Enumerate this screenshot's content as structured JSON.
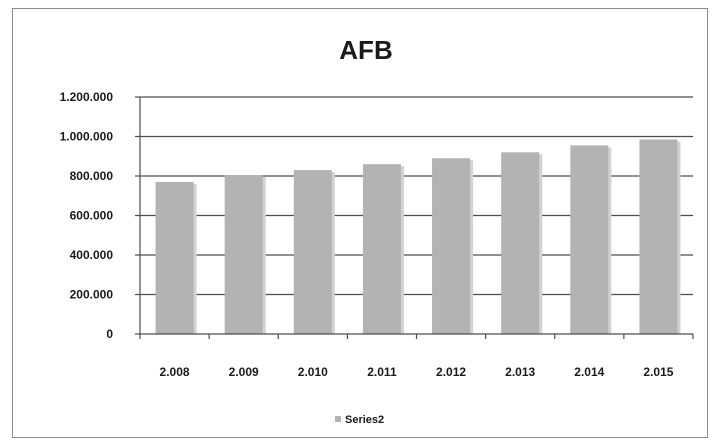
{
  "chart_data": {
    "type": "bar",
    "title": "AFB",
    "xlabel": "",
    "ylabel": "",
    "categories": [
      "2.008",
      "2.009",
      "2.010",
      "2.011",
      "2.012",
      "2.013",
      "2.014",
      "2.015"
    ],
    "series": [
      {
        "name": "Series2",
        "values": [
          770000,
          805000,
          830000,
          860000,
          890000,
          920000,
          955000,
          985000
        ]
      }
    ],
    "yticks": [
      {
        "value": 0,
        "label": "0"
      },
      {
        "value": 200000,
        "label": "200.000"
      },
      {
        "value": 400000,
        "label": "400.000"
      },
      {
        "value": 600000,
        "label": "600.000"
      },
      {
        "value": 800000,
        "label": "800.000"
      },
      {
        "value": 1000000,
        "label": "1.000.000"
      },
      {
        "value": 1200000,
        "label": "1.200.000"
      }
    ],
    "ylim": [
      0,
      1200000
    ],
    "grid": true,
    "legend": "bottom",
    "colors": {
      "bar": "#b3b3b3",
      "bar_shadow": "#d2d2d2",
      "grid": "#4d4d4d",
      "axis": "#4d4d4d",
      "legend_swatch": "#b3b3b3"
    }
  }
}
